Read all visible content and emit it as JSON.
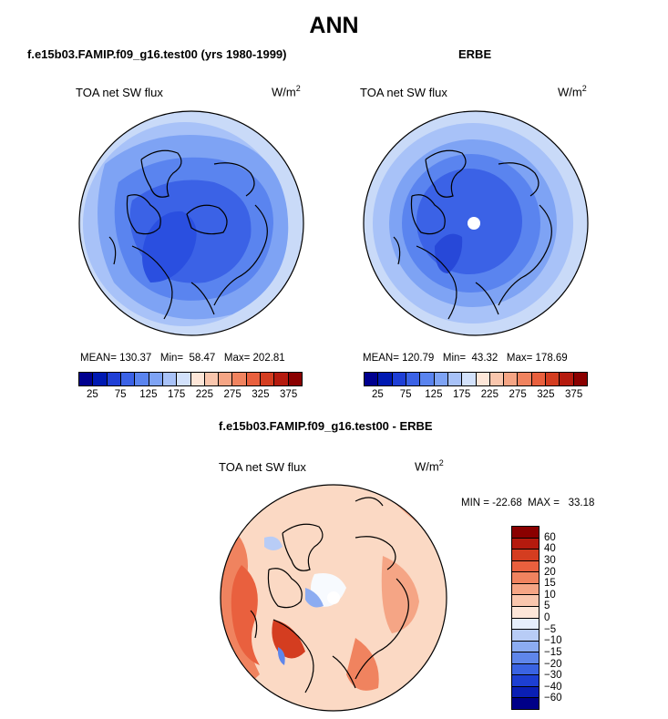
{
  "page": {
    "title": "ANN"
  },
  "panels": [
    {
      "title": "f.e15b03.FAMIP.f09_g16.test00 (yrs 1980-1999)",
      "variable": "TOA net SW flux",
      "units_base": "W/m",
      "units_exp": "2",
      "stats_text": "MEAN= 130.37   Min=  58.47   Max= 202.81"
    },
    {
      "title": "ERBE",
      "variable": "TOA net SW flux",
      "units_base": "W/m",
      "units_exp": "2",
      "stats_text": "MEAN= 120.79   Min=  43.32   Max= 178.69"
    },
    {
      "title": "f.e15b03.FAMIP.f09_g16.test00 - ERBE",
      "variable": "TOA net SW flux",
      "units_base": "W/m",
      "units_exp": "2",
      "stats_text": "MIN = -22.68  MAX =   33.18"
    }
  ],
  "abs_colorbar": {
    "colors": [
      "#00008f",
      "#0019b2",
      "#1f3fd6",
      "#3b62e6",
      "#5a84ef",
      "#7ea3f4",
      "#a8c2f8",
      "#d2e1fb",
      "#fde6d8",
      "#f9c6ad",
      "#f5a585",
      "#f0835f",
      "#e9603e",
      "#d43d20",
      "#b51a0e",
      "#8a0000"
    ],
    "ticks": [
      "25",
      "75",
      "125",
      "175",
      "225",
      "275",
      "325",
      "375"
    ]
  },
  "diff_colorbar": {
    "colors": [
      "#8a0000",
      "#b51a0e",
      "#d43d20",
      "#e9603e",
      "#f0835f",
      "#f5a585",
      "#f9c6ad",
      "#fde6d8",
      "#e6eefc",
      "#b8ccf6",
      "#8cacf1",
      "#5f86ea",
      "#3a63e2",
      "#1d3fd2",
      "#0a1fb4",
      "#000088"
    ],
    "ticks": [
      "60",
      "40",
      "30",
      "20",
      "15",
      "10",
      "5",
      "0",
      "−5",
      "−10",
      "−15",
      "−20",
      "−30",
      "−40",
      "−60"
    ]
  }
}
